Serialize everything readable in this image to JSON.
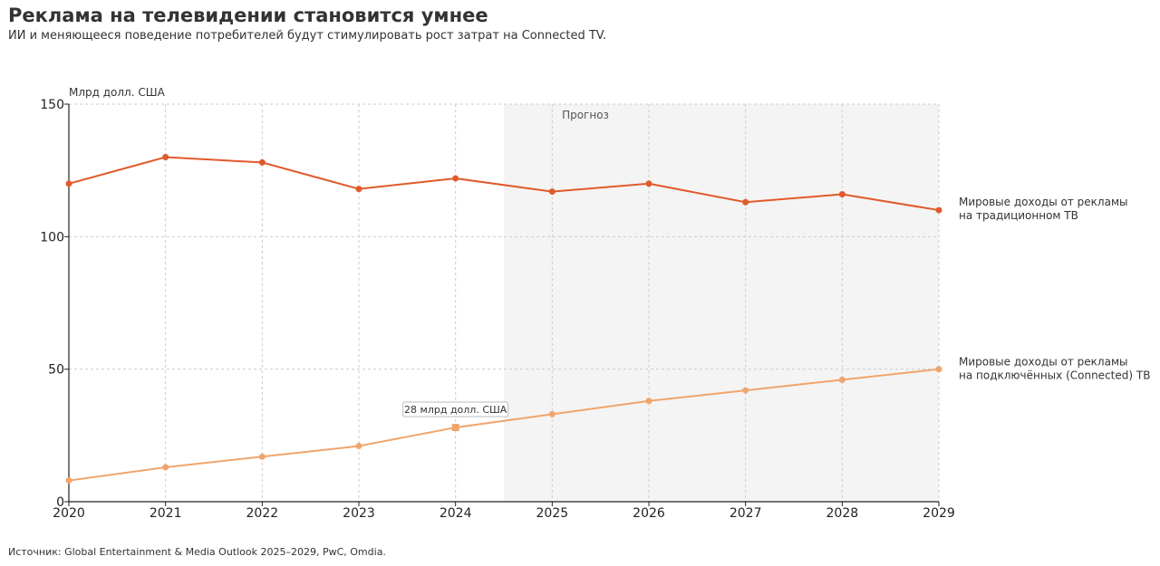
{
  "title": "Реклама на телевидении становится умнее",
  "subtitle": "ИИ и меняющееся поведение потребителей будут стимулировать рост затрат на Connected TV.",
  "source": "Источник: Global Entertainment & Media Outlook 2025–2029, PwC, Omdia.",
  "chart_data": {
    "type": "line",
    "ylabel": "Млрд долл. США",
    "ylim": [
      0,
      150
    ],
    "yticks": [
      "0",
      "50",
      "100",
      "150"
    ],
    "x": [
      "2020",
      "2021",
      "2022",
      "2023",
      "2024",
      "2025",
      "2026",
      "2027",
      "2028",
      "2029"
    ],
    "grid": true,
    "forecast": {
      "label": "Прогноз",
      "from": 2024.5,
      "to": 2029
    },
    "series": [
      {
        "name": "Мировые доходы от рекламы на традиционном ТВ",
        "label_lines": [
          "Мировые доходы от рекламы",
          "на традиционном ТВ"
        ],
        "color": "#e05a2b",
        "values": [
          120,
          130,
          128,
          118,
          122,
          117,
          120,
          113,
          116,
          110
        ]
      },
      {
        "name": "Мировые доходы от рекламы на подключённых (Connected) ТВ",
        "label_lines": [
          "Мировые доходы от рекламы",
          "на подключённых (Connected) ТВ"
        ],
        "color": "#f0a56c",
        "values": [
          8,
          13,
          17,
          21,
          28,
          33,
          38,
          42,
          46,
          50
        ]
      }
    ],
    "annotation": {
      "text": "28 млрд долл. США",
      "x": 2024,
      "y": 28
    }
  }
}
